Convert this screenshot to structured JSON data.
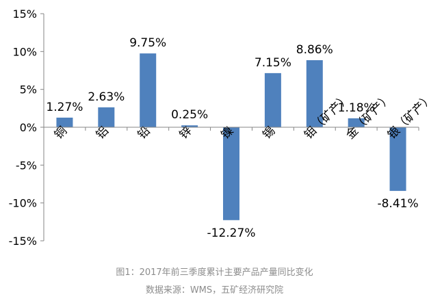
{
  "chart_data": {
    "type": "bar",
    "categories": [
      "铜",
      "铝",
      "铅",
      "锌",
      "镍",
      "锡",
      "钼（矿产）",
      "金（矿产）",
      "银（矿产）"
    ],
    "values": [
      1.27,
      2.63,
      9.75,
      0.25,
      -12.27,
      7.15,
      8.86,
      1.18,
      -8.41
    ],
    "value_labels": [
      "1.27%",
      "2.63%",
      "9.75%",
      "0.25%",
      "-12.27%",
      "7.15%",
      "8.86%",
      "1.18%",
      "-8.41%"
    ],
    "ylim": [
      -15,
      15
    ],
    "yticks": [
      15,
      10,
      5,
      0,
      -5,
      -10,
      -15
    ],
    "ytick_labels": [
      "15%",
      "10%",
      "5%",
      "0%",
      "-5%",
      "-10%",
      "-15%"
    ],
    "bar_color": "#4f81bd",
    "grid": false,
    "legend": "none"
  },
  "caption": {
    "title": "图1：2017年前三季度累计主要产品产量同比变化",
    "source": "数据来源：WMS，五矿经济研究院"
  }
}
